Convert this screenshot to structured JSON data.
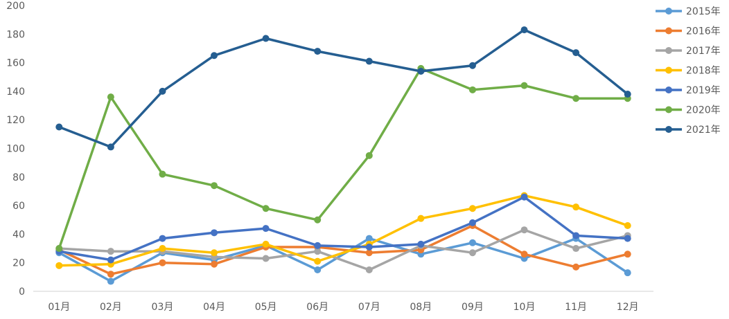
{
  "chart_data": {
    "type": "line",
    "categories": [
      "01月",
      "02月",
      "03月",
      "04月",
      "05月",
      "06月",
      "07月",
      "08月",
      "09月",
      "10月",
      "11月",
      "12月"
    ],
    "ylim": [
      0,
      200
    ],
    "yticks": [
      0,
      20,
      40,
      60,
      80,
      100,
      120,
      140,
      160,
      180,
      200
    ],
    "grid": false,
    "legend_position": "right",
    "series": [
      {
        "name": "2015年",
        "color": "#5B9BD5",
        "values": [
          27,
          7,
          27,
          22,
          32,
          15,
          37,
          26,
          34,
          23,
          37,
          13
        ]
      },
      {
        "name": "2016年",
        "color": "#ED7D31",
        "values": [
          29,
          12,
          20,
          19,
          31,
          31,
          27,
          29,
          46,
          26,
          17,
          26
        ]
      },
      {
        "name": "2017年",
        "color": "#A5A5A5",
        "values": [
          30,
          28,
          28,
          24,
          23,
          28,
          15,
          32,
          27,
          43,
          30,
          39
        ]
      },
      {
        "name": "2018年",
        "color": "#FFC000",
        "values": [
          18,
          19,
          30,
          27,
          33,
          21,
          33,
          51,
          58,
          67,
          59,
          46
        ]
      },
      {
        "name": "2019年",
        "color": "#4472C4",
        "values": [
          28,
          22,
          37,
          41,
          44,
          32,
          31,
          33,
          48,
          66,
          39,
          37
        ]
      },
      {
        "name": "2020年",
        "color": "#70AD47",
        "values": [
          30,
          136,
          82,
          74,
          58,
          50,
          95,
          156,
          141,
          144,
          135,
          135
        ]
      },
      {
        "name": "2021年",
        "color": "#255E91",
        "values": [
          115,
          101,
          140,
          165,
          177,
          168,
          161,
          154,
          158,
          183,
          167,
          138
        ]
      }
    ]
  }
}
